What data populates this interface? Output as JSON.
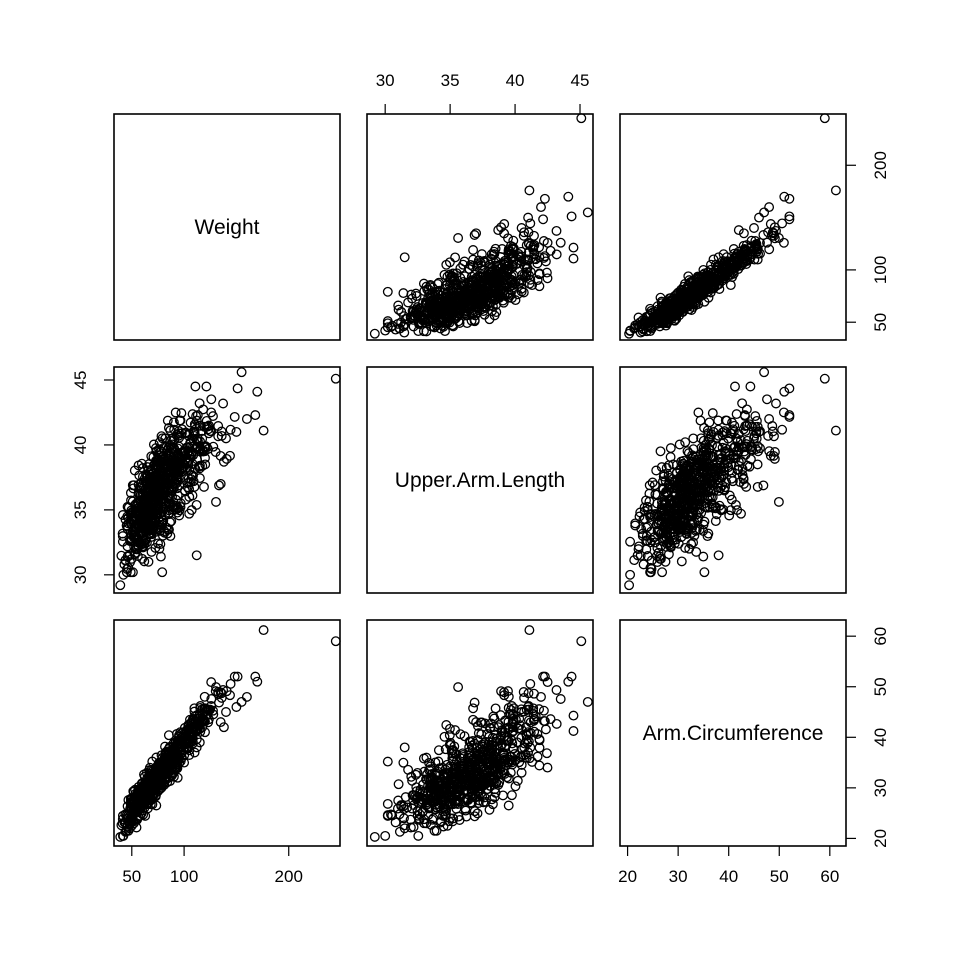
{
  "chart_data": {
    "type": "scatter",
    "layout": "pairs-matrix",
    "title": "",
    "variables": [
      {
        "name": "Weight",
        "ticks": [
          50,
          100,
          200
        ]
      },
      {
        "name": "Upper.Arm.Length",
        "ticks": [
          30,
          35,
          40,
          45
        ]
      },
      {
        "name": "Arm.Circumference",
        "ticks": [
          20,
          30,
          40,
          50,
          60
        ]
      }
    ],
    "ranges": {
      "Weight": [
        33,
        249
      ],
      "Upper.Arm.Length": [
        28.6,
        46.0
      ],
      "Arm.Circumference": [
        18.5,
        63.2
      ]
    },
    "sample_points": [
      [
        39,
        29.2,
        20.3
      ],
      [
        245,
        45.1,
        59.0
      ],
      [
        176,
        41.1,
        61.2
      ],
      [
        170,
        44.1,
        51.0
      ],
      [
        168,
        42.3,
        52.0
      ],
      [
        160,
        42.0,
        48.0
      ],
      [
        155,
        45.6,
        47.0
      ],
      [
        150,
        41.0,
        46.0
      ],
      [
        140,
        40.5,
        45.0
      ],
      [
        138,
        38.7,
        42.0
      ],
      [
        135,
        37.0,
        43.0
      ],
      [
        120,
        39.0,
        41.0
      ],
      [
        115,
        38.2,
        39.0
      ],
      [
        110,
        41.0,
        37.0
      ],
      [
        105,
        36.0,
        36.5
      ],
      [
        100,
        39.5,
        35.0
      ],
      [
        95,
        37.5,
        35.5
      ],
      [
        90,
        35.0,
        33.0
      ],
      [
        88,
        36.5,
        33.5
      ],
      [
        85,
        38.0,
        32.0
      ],
      [
        80,
        37.0,
        31.0
      ],
      [
        78,
        34.5,
        30.0
      ],
      [
        75,
        36.0,
        30.5
      ],
      [
        72,
        38.5,
        29.0
      ],
      [
        70,
        35.5,
        28.5
      ],
      [
        68,
        33.5,
        27.5
      ],
      [
        65,
        37.2,
        27.0
      ],
      [
        62,
        34.0,
        26.0
      ],
      [
        60,
        36.2,
        25.5
      ],
      [
        58,
        32.5,
        24.5
      ],
      [
        55,
        35.0,
        24.0
      ],
      [
        52,
        33.0,
        23.0
      ],
      [
        50,
        34.8,
        22.5
      ],
      [
        48,
        31.5,
        22.0
      ],
      [
        45,
        33.8,
        21.5
      ],
      [
        42,
        30.0,
        20.5
      ],
      [
        112,
        31.5,
        38.0
      ],
      [
        82,
        40.5,
        33.0
      ],
      [
        92,
        42.5,
        34.0
      ],
      [
        66,
        31.0,
        27.5
      ]
    ]
  }
}
